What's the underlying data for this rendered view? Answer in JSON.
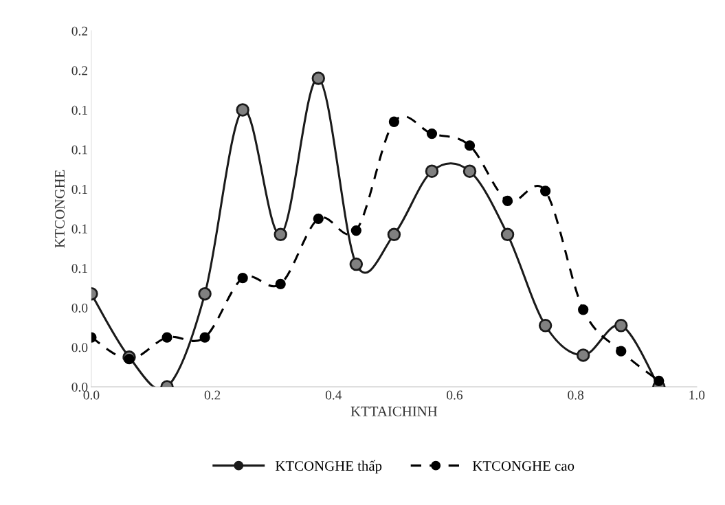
{
  "chart_data": {
    "type": "line",
    "xlabel": "KTTAICHINH",
    "ylabel": "KTCONGHE",
    "x": [
      0,
      0.0625,
      0.125,
      0.1875,
      0.25,
      0.3125,
      0.375,
      0.4375,
      0.5,
      0.5625,
      0.625,
      0.6875,
      0.75,
      0.8125,
      0.875,
      0.9375
    ],
    "series": [
      {
        "name": "KTCONGHE thấp",
        "color": "#1a1a1a",
        "line_style": "solid",
        "values": [
          0.047,
          0.015,
          0,
          0.047,
          0.14,
          0.077,
          0.156,
          0.062,
          0.077,
          0.109,
          0.109,
          0.077,
          0.031,
          0.016,
          0.031,
          0
        ]
      },
      {
        "name": "KTCONGHE cao",
        "color": "#000000",
        "line_style": "dashed",
        "values": [
          0.025,
          0.014,
          0.025,
          0.025,
          0.055,
          0.052,
          0.085,
          0.079,
          0.134,
          0.128,
          0.122,
          0.094,
          0.099,
          0.039,
          0.018,
          0.003
        ]
      }
    ],
    "xlim": [
      0,
      1
    ],
    "xticks": [
      {
        "value": 0,
        "label": "0.0"
      },
      0.2,
      0.4,
      0.6,
      0.8,
      {
        "value": 1,
        "label": "1.0"
      }
    ],
    "ylim": [
      0,
      0.18
    ],
    "yticks": [
      {
        "value": 0,
        "label": "0.0"
      },
      {
        "value": 0.02,
        "label": "0.0"
      },
      {
        "value": 0.04,
        "label": "0.0"
      },
      {
        "value": 0.06,
        "label": "0.1"
      },
      {
        "value": 0.08,
        "label": "0.1"
      },
      {
        "value": 0.1,
        "label": "0.1"
      },
      {
        "value": 0.12,
        "label": "0.1"
      },
      {
        "value": 0.14,
        "label": "0.1"
      },
      {
        "value": 0.16,
        "label": "0.2"
      },
      {
        "value": 0.18,
        "label": "0.2"
      }
    ],
    "grid": false,
    "legend": "bottom",
    "marker": "circle"
  }
}
